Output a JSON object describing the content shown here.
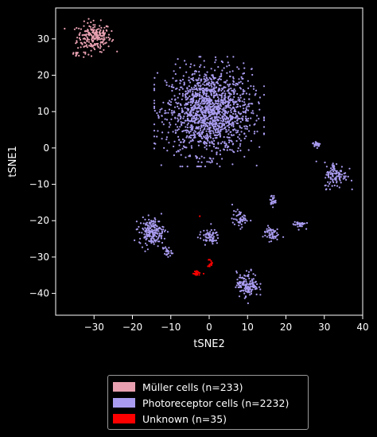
{
  "chart_data": {
    "type": "scatter",
    "xlabel": "tSNE2",
    "ylabel": "tSNE1",
    "xlim": [
      -40,
      40
    ],
    "ylim": [
      -46,
      38.5
    ],
    "xticks": [
      -30,
      -20,
      -10,
      0,
      10,
      20,
      30,
      40
    ],
    "yticks": [
      30,
      20,
      10,
      0,
      -10,
      -20,
      -30,
      -40
    ],
    "grid": false,
    "legend_placement": "below",
    "series": [
      {
        "name": "Müller cells (n=233)",
        "color": "#e8a0b0",
        "clusters": [
          {
            "cx": -30,
            "cy": 30.5,
            "sx": 2.2,
            "sy": 2.0,
            "n": 220
          },
          {
            "cx": -34.5,
            "cy": 25.8,
            "sx": 1.1,
            "sy": 0.5,
            "n": 13
          }
        ]
      },
      {
        "name": "Photoreceptor cells (n=2232)",
        "color": "#a99cf0",
        "clusters": [
          {
            "cx": 0,
            "cy": 10,
            "sx": 5.5,
            "sy": 5.8,
            "n": 1500
          },
          {
            "cx": 28,
            "cy": 1,
            "sx": 0.5,
            "sy": 0.4,
            "n": 25
          },
          {
            "cx": 33,
            "cy": -7.5,
            "sx": 1.5,
            "sy": 1.8,
            "n": 110
          },
          {
            "cx": -15,
            "cy": -23,
            "sx": 1.6,
            "sy": 1.8,
            "n": 190
          },
          {
            "cx": -11,
            "cy": -28.5,
            "sx": 0.6,
            "sy": 0.8,
            "n": 25
          },
          {
            "cx": 16.5,
            "cy": -14.5,
            "sx": 0.4,
            "sy": 0.8,
            "n": 25
          },
          {
            "cx": 8,
            "cy": -19.5,
            "sx": 1.0,
            "sy": 1.1,
            "n": 50
          },
          {
            "cx": 23.5,
            "cy": -21,
            "sx": 0.8,
            "sy": 0.5,
            "n": 35
          },
          {
            "cx": 16,
            "cy": -23.5,
            "sx": 1.0,
            "sy": 1.0,
            "n": 55
          },
          {
            "cx": 0,
            "cy": -24.5,
            "sx": 1.3,
            "sy": 1.0,
            "n": 70
          },
          {
            "cx": 10,
            "cy": -37.5,
            "sx": 1.4,
            "sy": 1.7,
            "n": 147
          }
        ]
      },
      {
        "name": "Unknown (n=35)",
        "color": "#ff0000",
        "clusters": [
          {
            "cx": -3,
            "cy": -34.5,
            "sx": 0.6,
            "sy": 0.3,
            "n": 20
          },
          {
            "cx": 0.3,
            "cy": -31.5,
            "sx": 0.4,
            "sy": 0.6,
            "n": 14
          },
          {
            "cx": -2.5,
            "cy": -18.8,
            "sx": 0.1,
            "sy": 0.2,
            "n": 1
          }
        ]
      }
    ]
  }
}
